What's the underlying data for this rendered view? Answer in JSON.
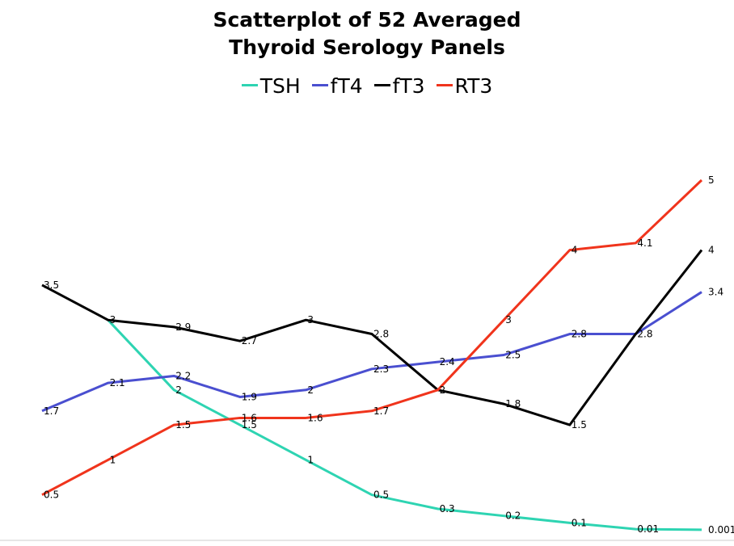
{
  "title_line1": "Scatterplot of 52 Averaged",
  "title_line2": "Thyroid Serology Panels",
  "chart_data": {
    "type": "line",
    "title": "Scatterplot of 52 Averaged Thyroid Serology Panels",
    "x": [
      1,
      2,
      3,
      4,
      5,
      6,
      7,
      8,
      9,
      10,
      11
    ],
    "grid": false,
    "legend_position": "top",
    "series": [
      {
        "name": "TSH",
        "color": "#2ed4b2",
        "values": [
          null,
          3,
          2,
          1.5,
          1,
          0.5,
          0.3,
          0.2,
          0.1,
          0.01,
          0.001
        ],
        "labels": [
          "",
          "",
          "2",
          "1.5",
          "1",
          "0.5",
          "0.3",
          "0.2",
          "0.1",
          "0.01",
          "0.001"
        ]
      },
      {
        "name": "fT4",
        "color": "#4a4fd0",
        "values": [
          1.7,
          2.1,
          2.2,
          1.9,
          2,
          2.3,
          2.4,
          2.5,
          2.8,
          2.8,
          3.4
        ],
        "labels": [
          "1.7",
          "2.1",
          "2.2",
          "1.9",
          "2",
          "2.3",
          "2.4",
          "2.5",
          "2.8",
          "2.8",
          "3.4"
        ]
      },
      {
        "name": "fT3",
        "color": "#000000",
        "values": [
          3.5,
          3,
          2.9,
          2.7,
          3,
          2.8,
          2,
          1.8,
          1.5,
          2.8,
          4
        ],
        "labels": [
          "3.5",
          "3",
          "2.9",
          "2.7",
          "3",
          "2.8",
          "2",
          "1.8",
          "1.5",
          "",
          "4"
        ]
      },
      {
        "name": "RT3",
        "color": "#f0341c",
        "values": [
          0.5,
          1,
          1.5,
          1.6,
          1.6,
          1.7,
          2,
          3,
          4,
          4.1,
          5
        ],
        "labels": [
          "0.5",
          "1",
          "1.5",
          "1.6",
          "1.6",
          "1.7",
          "",
          "3",
          "4",
          "4.1",
          "5"
        ]
      }
    ]
  }
}
